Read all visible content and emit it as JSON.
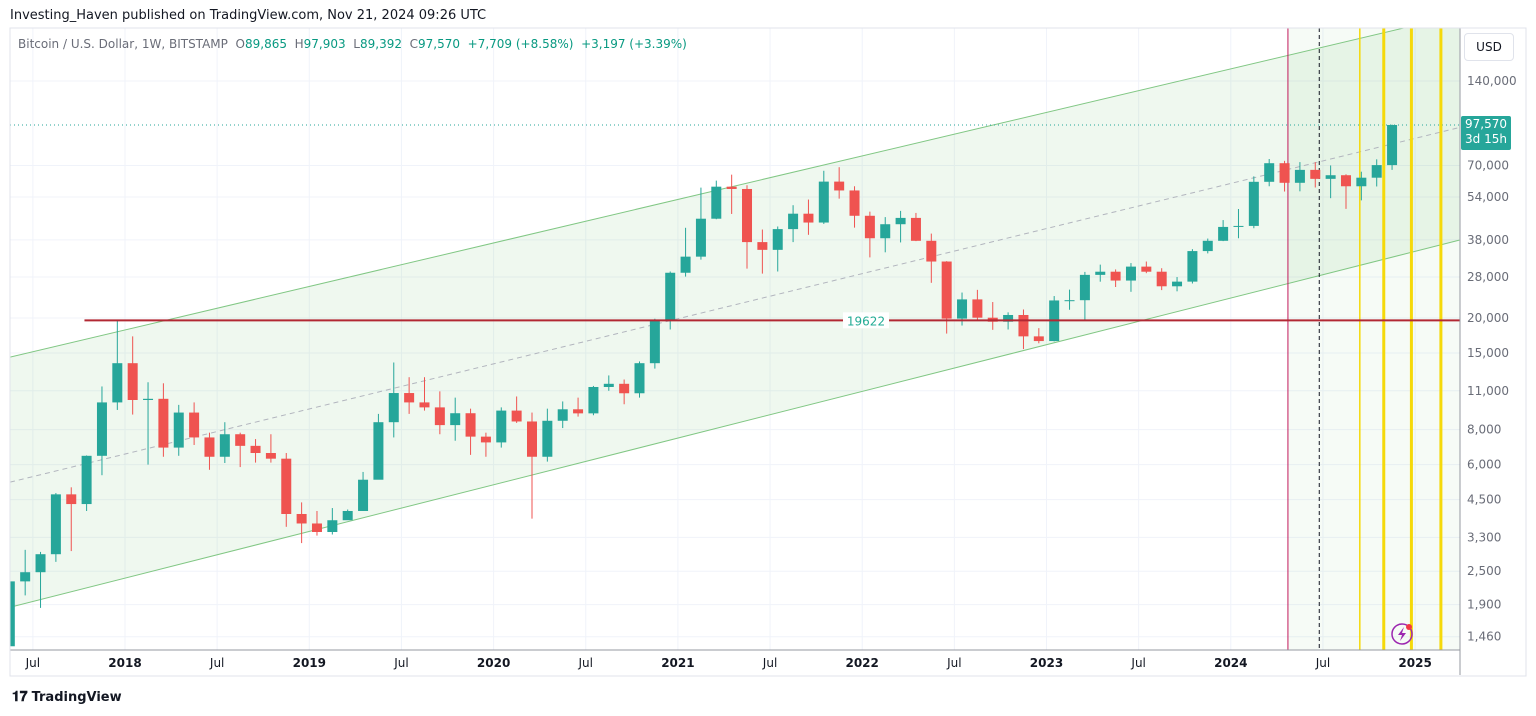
{
  "header": {
    "published": "Investing_Haven published on TradingView.com, Nov 21, 2024 09:26 UTC"
  },
  "legend": {
    "symbol": "Bitcoin / U.S. Dollar, 1W, BITSTAMP",
    "open_label": "O",
    "open": "89,865",
    "high_label": "H",
    "high": "97,903",
    "low_label": "L",
    "low": "89,392",
    "close_label": "C",
    "close": "97,570",
    "change": "+7,709 (+8.58%)",
    "change2": "+3,197 (+3.39%)"
  },
  "price_axis": {
    "currency": "USD",
    "last_price": "97,570",
    "countdown": "3d 15h"
  },
  "footer": {
    "brand": "TradingView",
    "logo_icon": "tradingview-logo-icon"
  },
  "colors": {
    "up": "#26a69a",
    "down": "#ef5350",
    "channel": "#4caf50",
    "support": "#b22833",
    "halving": "#c2185b",
    "cycle_lines": "#f5d90a"
  },
  "chart_data": {
    "type": "candlestick",
    "title": "Bitcoin / U.S. Dollar, 1W, BITSTAMP",
    "scale": "log",
    "ylim": [
      1400,
      250000
    ],
    "xlim": [
      "2017-05",
      "2025-03"
    ],
    "grid": true,
    "y_ticks": [
      140000,
      70000,
      54000,
      38000,
      28000,
      20000,
      15000,
      11000,
      8000,
      6000,
      4500,
      3300,
      2500,
      1900,
      1460
    ],
    "y_tick_labels": [
      "140,000",
      "70,000",
      "54,000",
      "38,000",
      "28,000",
      "20,000",
      "15,000",
      "11,000",
      "8,000",
      "6,000",
      "4,500",
      "3,300",
      "2,500",
      "1,900",
      "1,460"
    ],
    "x_ticks": [
      {
        "date": 2017.5,
        "label": "Jul"
      },
      {
        "date": 2018,
        "label": "2018"
      },
      {
        "date": 2018.5,
        "label": "Jul"
      },
      {
        "date": 2019,
        "label": "2019"
      },
      {
        "date": 2019.5,
        "label": "Jul"
      },
      {
        "date": 2020,
        "label": "2020"
      },
      {
        "date": 2020.5,
        "label": "Jul"
      },
      {
        "date": 2021,
        "label": "2021"
      },
      {
        "date": 2021.5,
        "label": "Jul"
      },
      {
        "date": 2022,
        "label": "2022"
      },
      {
        "date": 2022.5,
        "label": "Jul"
      },
      {
        "date": 2023,
        "label": "2023"
      },
      {
        "date": 2023.5,
        "label": "Jul"
      },
      {
        "date": 2024,
        "label": "2024"
      },
      {
        "date": 2024.5,
        "label": "Jul"
      },
      {
        "date": 2025,
        "label": "2025"
      }
    ],
    "start_month": "2017-05",
    "open_first": 1350,
    "close": [
      2300,
      2480,
      2875,
      4700,
      4340,
      6450,
      10000,
      13800,
      10200,
      10300,
      6900,
      9200,
      7500,
      6400,
      7700,
      7000,
      6600,
      6300,
      4000,
      3700,
      3450,
      3800,
      4100,
      5300,
      8500,
      10800,
      10000,
      9600,
      8300,
      9150,
      7550,
      7200,
      9350,
      8550,
      6400,
      8600,
      9450,
      9140,
      11350,
      11650,
      10780,
      13800,
      19700,
      29000,
      33100,
      45200,
      58800,
      57700,
      37300,
      35000,
      41500,
      47100,
      43800,
      61300,
      57000,
      46300,
      38500,
      43200,
      45500,
      37700,
      31800,
      19900,
      23300,
      20050,
      19400,
      20500,
      17200,
      16550,
      23100,
      23150,
      28500,
      29250,
      27200,
      30500,
      29250,
      25950,
      26960,
      34650,
      37700,
      42250,
      42600,
      61200,
      71300,
      60700,
      67500,
      62700,
      64600,
      59000,
      63300,
      70200,
      97570
    ],
    "high": [
      2760,
      2980,
      2930,
      4750,
      4980,
      6470,
      11400,
      19666,
      17200,
      11800,
      11700,
      9800,
      10000,
      7800,
      8500,
      7800,
      7400,
      7700,
      6600,
      4400,
      4100,
      4200,
      4150,
      5650,
      9100,
      13880,
      12300,
      12300,
      10950,
      10400,
      9500,
      7800,
      9600,
      10500,
      9200,
      9500,
      10080,
      10400,
      11450,
      12480,
      12070,
      14000,
      19880,
      29300,
      41950,
      58350,
      61800,
      64900,
      59500,
      41350,
      42400,
      50500,
      52900,
      67000,
      69000,
      59000,
      47900,
      45800,
      48200,
      47400,
      40000,
      31900,
      24650,
      25200,
      22800,
      20950,
      21450,
      18400,
      23950,
      25250,
      29200,
      31000,
      29800,
      31400,
      31800,
      30100,
      28000,
      35200,
      38400,
      44700,
      48950,
      64000,
      73800,
      72700,
      71950,
      71900,
      70000,
      65100,
      66500,
      73600,
      97903
    ],
    "low": [
      1800,
      2050,
      1850,
      2700,
      2950,
      4100,
      5500,
      9400,
      9050,
      6000,
      6400,
      6450,
      7050,
      5750,
      6080,
      5880,
      6100,
      6100,
      3600,
      3150,
      3350,
      3380,
      3820,
      4100,
      5350,
      7500,
      9100,
      9350,
      7700,
      7300,
      6500,
      6400,
      6900,
      8450,
      3850,
      6150,
      8100,
      8900,
      9000,
      11000,
      9850,
      10400,
      13200,
      18200,
      28100,
      32300,
      45000,
      47000,
      30000,
      28800,
      29300,
      37300,
      39600,
      43300,
      53300,
      42000,
      32900,
      34300,
      37200,
      37600,
      26700,
      17600,
      18800,
      19600,
      18150,
      18200,
      15500,
      16250,
      16500,
      21400,
      19550,
      26950,
      25800,
      24800,
      28900,
      25150,
      24900,
      26550,
      34000,
      37600,
      38500,
      41800,
      59000,
      56500,
      56600,
      58400,
      53500,
      49000,
      52550,
      58900,
      67500
    ],
    "channel": {
      "upper": [
        [
          2017.376,
          14500
        ],
        [
          2025.24,
          241000
        ]
      ],
      "lower": [
        [
          2017.376,
          1860
        ],
        [
          2025.24,
          37900
        ]
      ]
    },
    "support_line": {
      "value": 19622,
      "label": "19622",
      "from": 2017.78
    },
    "vertical_lines": [
      {
        "date": "2024-04-20",
        "decimal": 2024.31,
        "style": "halving"
      },
      {
        "date": "2024-06-24",
        "decimal": 2024.48,
        "style": "dashed"
      },
      {
        "date": "2024-09-13",
        "decimal": 2024.7,
        "style": "cycle"
      },
      {
        "date": "2024-10-30",
        "decimal": 2024.83,
        "style": "cycle"
      },
      {
        "date": "2024-12-24",
        "decimal": 2024.98,
        "style": "cycle"
      },
      {
        "date": "2025-02-21",
        "decimal": 2025.14,
        "style": "cycle"
      }
    ],
    "last_price": 97570
  }
}
